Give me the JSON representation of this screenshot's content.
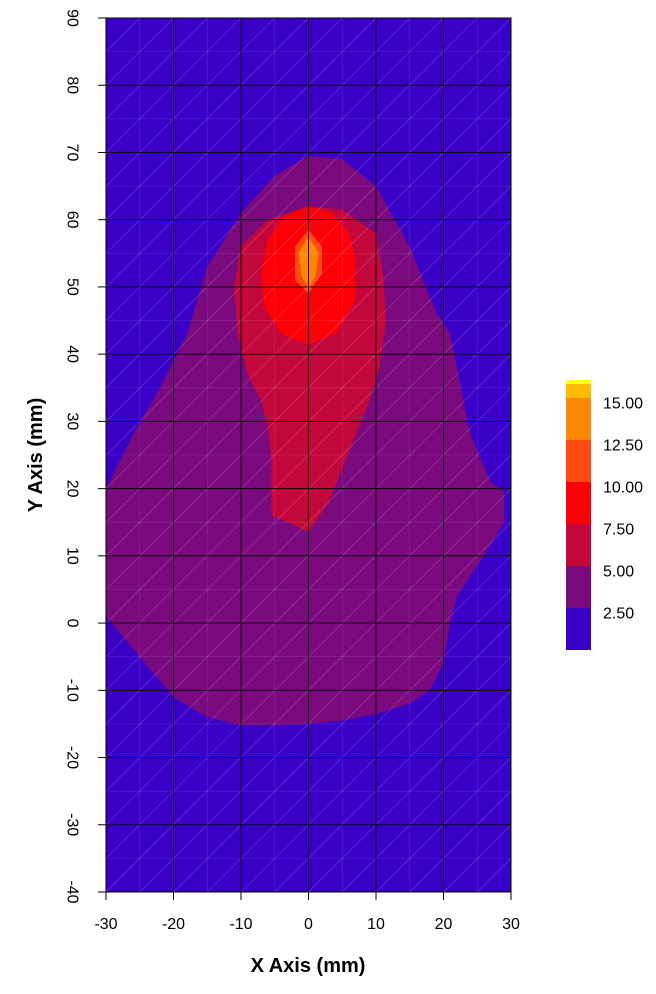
{
  "chart_data": {
    "type": "contour",
    "title": "",
    "xlabel": "X Axis (mm)",
    "ylabel": "Y Axis (mm)",
    "xlim": [
      -30,
      30
    ],
    "ylim": [
      -40,
      90
    ],
    "x_ticks": [
      "-30",
      "-20",
      "-10",
      "0",
      "10",
      "20",
      "30"
    ],
    "y_ticks": [
      "-40",
      "-30",
      "-20",
      "-10",
      "0",
      "10",
      "20",
      "30",
      "40",
      "50",
      "60",
      "70",
      "80",
      "90"
    ],
    "grid": true,
    "legend_position": "right",
    "levels": [
      {
        "label": "2.50",
        "color": "#3a00c8"
      },
      {
        "label": "5.00",
        "color": "#7a0a7e"
      },
      {
        "label": "7.50",
        "color": "#c4083c"
      },
      {
        "label": "10.00",
        "color": "#ff0008"
      },
      {
        "label": "12.50",
        "color": "#ff4a10"
      },
      {
        "label": "15.00",
        "color": "#ff8800"
      },
      {
        "label": "",
        "color": "#ffbb00"
      },
      {
        "label": "",
        "color": "#ffff20"
      }
    ],
    "regions": [
      {
        "level": 0,
        "points": [
          [
            -30,
            -40
          ],
          [
            30,
            -40
          ],
          [
            30,
            90
          ],
          [
            -30,
            90
          ]
        ]
      },
      {
        "level": 1,
        "points": [
          [
            0,
            69.5
          ],
          [
            5,
            69
          ],
          [
            10,
            65
          ],
          [
            15,
            56
          ],
          [
            19,
            46
          ],
          [
            21,
            43
          ],
          [
            24,
            28
          ],
          [
            27,
            21
          ],
          [
            29,
            19.5
          ],
          [
            29,
            15
          ],
          [
            26,
            10
          ],
          [
            22,
            4
          ],
          [
            21,
            0
          ],
          [
            20,
            -6
          ],
          [
            18,
            -10
          ],
          [
            15,
            -12
          ],
          [
            10,
            -13.5
          ],
          [
            5,
            -14.5
          ],
          [
            0,
            -15
          ],
          [
            -5,
            -15.2
          ],
          [
            -10,
            -15.2
          ],
          [
            -15,
            -14
          ],
          [
            -20,
            -11
          ],
          [
            -25,
            -5
          ],
          [
            -30,
            1
          ],
          [
            -30,
            20
          ],
          [
            -26,
            28
          ],
          [
            -22,
            35
          ],
          [
            -18,
            43
          ],
          [
            -15,
            53
          ],
          [
            -10,
            61
          ],
          [
            -5,
            66.5
          ]
        ]
      },
      {
        "level": 2,
        "points": [
          [
            0,
            62
          ],
          [
            5,
            61.5
          ],
          [
            10,
            58
          ],
          [
            11,
            52
          ],
          [
            11.5,
            45
          ],
          [
            10.5,
            38
          ],
          [
            9,
            33
          ],
          [
            7,
            28
          ],
          [
            5,
            23
          ],
          [
            3,
            18
          ],
          [
            0,
            13.5
          ],
          [
            -3,
            15
          ],
          [
            -5.5,
            16
          ],
          [
            -5.5,
            24
          ],
          [
            -6,
            29
          ],
          [
            -7,
            33
          ],
          [
            -9,
            37
          ],
          [
            -10.5,
            43
          ],
          [
            -11,
            50
          ],
          [
            -10,
            56
          ],
          [
            -6,
            60
          ]
        ]
      },
      {
        "level": 3,
        "points": [
          [
            0,
            62
          ],
          [
            3.5,
            61
          ],
          [
            6,
            58
          ],
          [
            7,
            54
          ],
          [
            7,
            48
          ],
          [
            4,
            43
          ],
          [
            0,
            41.5
          ],
          [
            -4,
            43
          ],
          [
            -6.5,
            47
          ],
          [
            -7,
            52
          ],
          [
            -6,
            57
          ],
          [
            -3.5,
            60.5
          ]
        ]
      },
      {
        "level": 4,
        "points": [
          [
            0,
            58.5
          ],
          [
            2,
            56
          ],
          [
            2,
            52
          ],
          [
            0,
            49
          ],
          [
            -2,
            51
          ],
          [
            -2,
            56
          ]
        ]
      },
      {
        "level": 5,
        "points": [
          [
            0,
            57.5
          ],
          [
            1.5,
            55
          ],
          [
            1,
            51.5
          ],
          [
            0,
            50
          ],
          [
            -1,
            51.5
          ],
          [
            -1.5,
            55
          ]
        ]
      }
    ]
  }
}
